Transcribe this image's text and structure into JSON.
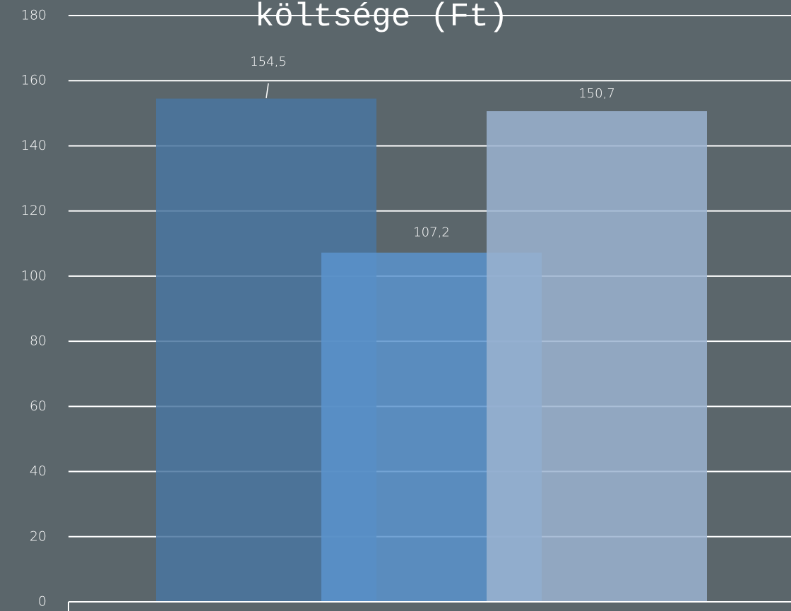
{
  "chart_data": {
    "type": "bar",
    "title": "költsége (Ft)",
    "values": [
      154.5,
      107.2,
      150.7
    ],
    "value_labels": [
      "154,5",
      "107,2",
      "150,7"
    ],
    "colors": [
      "#4a76a0",
      "#5a93cc",
      "#9bb3d0"
    ],
    "ylim": [
      0,
      180
    ],
    "yticks": [
      0,
      20,
      40,
      60,
      80,
      100,
      120,
      140,
      160,
      180
    ],
    "grid": true
  }
}
